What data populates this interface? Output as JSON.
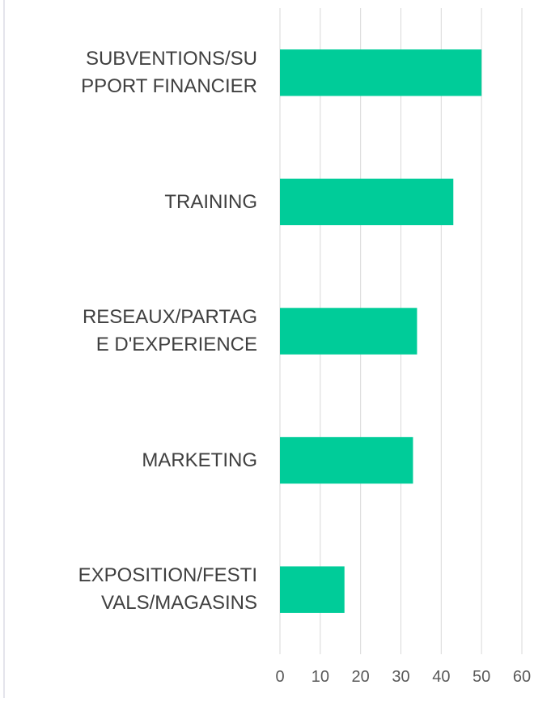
{
  "chart_data": {
    "type": "barh",
    "categories": [
      "SUBVENTIONS/SU\nPPORT FINANCIER",
      "TRAINING",
      "RESEAUX/PARTAG\nE D'EXPERIENCE",
      "MARKETING",
      "EXPOSITION/FESTI\nVALS/MAGASINS"
    ],
    "values": [
      50,
      43,
      34,
      33,
      16
    ],
    "color": "#00cc99",
    "xlim": [
      0,
      60
    ],
    "xticks": [
      0,
      10,
      20,
      30,
      40,
      50,
      60
    ],
    "grid": true
  }
}
